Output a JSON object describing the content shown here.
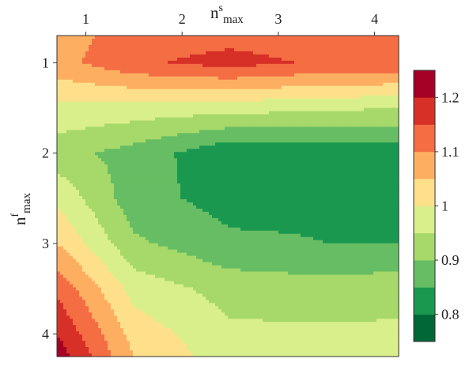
{
  "chart_data": {
    "type": "heatmap",
    "subtype": "filled-contour",
    "xlabel": {
      "base": "n",
      "sup": "s",
      "sub": "max"
    },
    "ylabel": {
      "base": "n",
      "sup": "f",
      "sub": "max"
    },
    "x_axis_position": "top",
    "y_axis_inverted": true,
    "xlim": [
      0.7,
      4.25
    ],
    "ylim": [
      4.25,
      0.7
    ],
    "xticks": [
      1,
      2,
      3,
      4
    ],
    "yticks": [
      1,
      2,
      3,
      4
    ],
    "xtick_labels": [
      "1",
      "2",
      "3",
      "4"
    ],
    "ytick_labels": [
      "1",
      "2",
      "3",
      "4"
    ],
    "levels": [
      0.75,
      0.8,
      0.85,
      0.9,
      0.95,
      1.0,
      1.05,
      1.1,
      1.15,
      1.2,
      1.25
    ],
    "colors": [
      "#006837",
      "#1a9850",
      "#66bd63",
      "#a6d96a",
      "#d9ef8b",
      "#fee08b",
      "#fdae61",
      "#f46d43",
      "#d73027",
      "#a50026"
    ],
    "colorbar": {
      "ticks": [
        0.8,
        0.9,
        1.0,
        1.1,
        1.2
      ],
      "tick_labels": [
        "0.8",
        "0.9",
        "1",
        "1.1",
        "1.2"
      ]
    },
    "x": [
      0.7,
      1.5,
      2.5,
      3.5,
      4.25
    ],
    "y": [
      0.7,
      1.0,
      1.5,
      2.0,
      2.5,
      3.0,
      3.5,
      4.0,
      4.25
    ],
    "z": [
      [
        1.08,
        1.12,
        1.13,
        1.12,
        1.12
      ],
      [
        1.08,
        1.14,
        1.17,
        1.14,
        1.14
      ],
      [
        0.99,
        0.98,
        0.97,
        0.96,
        0.95
      ],
      [
        0.92,
        0.88,
        0.81,
        0.82,
        0.82
      ],
      [
        0.99,
        0.87,
        0.83,
        0.84,
        0.84
      ],
      [
        1.05,
        0.91,
        0.86,
        0.85,
        0.85
      ],
      [
        1.14,
        0.98,
        0.93,
        0.92,
        0.93
      ],
      [
        1.2,
        1.03,
        0.96,
        0.96,
        0.96
      ],
      [
        1.23,
        1.05,
        0.97,
        0.97,
        0.97
      ]
    ],
    "grid": false,
    "legend": "colorbar-right"
  }
}
